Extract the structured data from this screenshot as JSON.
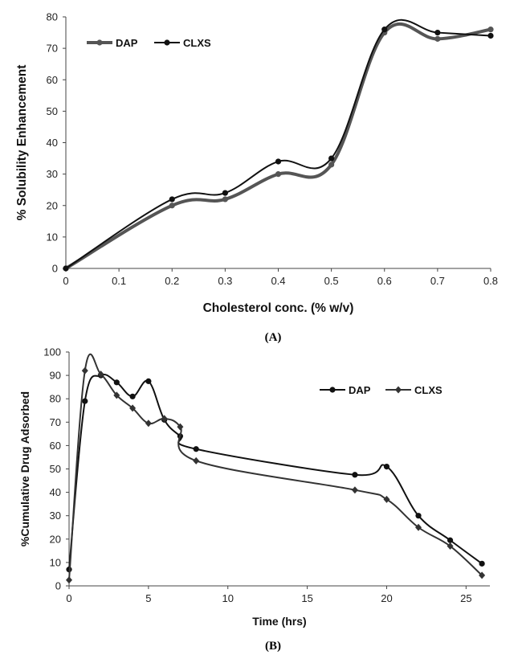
{
  "panel_captions": [
    "(A)",
    "(B)"
  ],
  "chart_data": [
    {
      "type": "line",
      "title": "",
      "xlabel": "Cholesterol conc. (% w/v)",
      "ylabel": "% Solubility  Enhancement",
      "x": [
        0,
        0.2,
        0.3,
        0.4,
        0.5,
        0.6,
        0.7,
        0.8
      ],
      "xticks": [
        0,
        0.1,
        0.2,
        0.3,
        0.4,
        0.5,
        0.6,
        0.7,
        0.8
      ],
      "xtick_labels": [
        "0",
        "0.1",
        "0.2",
        "0.3",
        "0.4",
        "0.5",
        "0.6",
        "0.7",
        "0.8"
      ],
      "yticks": [
        0,
        10,
        20,
        30,
        40,
        50,
        60,
        70,
        80
      ],
      "xlim": [
        0,
        0.8
      ],
      "ylim": [
        0,
        80
      ],
      "grid": false,
      "legend_position": "top-left",
      "smooth": true,
      "series": [
        {
          "name": "DAP",
          "values": [
            0,
            20,
            22,
            30,
            33,
            75,
            73,
            76
          ],
          "color": "#555555",
          "marker": "circle"
        },
        {
          "name": "CLXS",
          "values": [
            0,
            22,
            24,
            34,
            35,
            76,
            75,
            74
          ],
          "color": "#111111",
          "marker": "circle"
        }
      ]
    },
    {
      "type": "line",
      "title": "",
      "xlabel": "Time (hrs)",
      "ylabel": "%Cumulative Drug Adsorbed",
      "xticks": [
        0,
        5,
        10,
        15,
        20,
        25
      ],
      "xtick_labels": [
        "0",
        "5",
        "10",
        "15",
        "20",
        "25"
      ],
      "yticks": [
        0,
        10,
        20,
        30,
        40,
        50,
        60,
        70,
        80,
        90,
        100
      ],
      "xlim": [
        0,
        26.5
      ],
      "ylim": [
        0,
        100
      ],
      "grid": false,
      "legend_position": "top-right",
      "smooth": true,
      "series": [
        {
          "name": "DAP",
          "x": [
            0,
            1,
            2,
            3,
            4,
            5,
            6,
            7,
            8,
            18,
            20,
            22,
            24,
            26
          ],
          "values": [
            7,
            79,
            90,
            87,
            81,
            87.5,
            71,
            64,
            58.5,
            47.5,
            51,
            30,
            19.5,
            9.5
          ],
          "color": "#111111",
          "marker": "circle"
        },
        {
          "name": "CLXS",
          "x": [
            0,
            1,
            2,
            3,
            4,
            5,
            6,
            7,
            8,
            18,
            20,
            22,
            24,
            26
          ],
          "values": [
            2.5,
            92,
            90.5,
            81.5,
            76,
            69.5,
            71.5,
            68,
            53.5,
            41,
            37,
            25,
            17,
            4.5
          ],
          "color": "#333333",
          "marker": "diamond"
        }
      ]
    }
  ]
}
